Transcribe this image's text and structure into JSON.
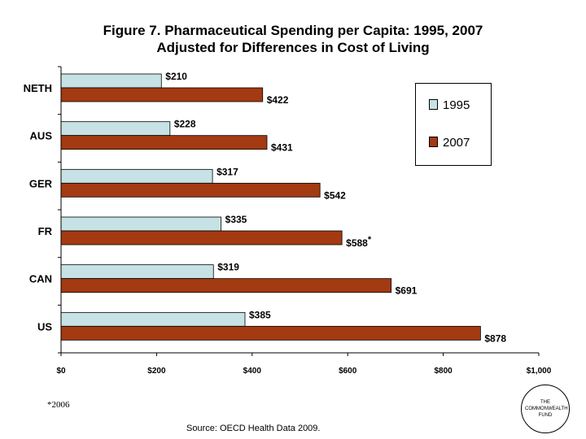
{
  "chart_data": {
    "type": "bar",
    "orientation": "horizontal",
    "title": "Figure 7. Pharmaceutical Spending per Capita: 1995, 2007",
    "subtitle": "Adjusted for Differences in Cost of Living",
    "categories": [
      "NETH",
      "AUS",
      "GER",
      "FR",
      "CAN",
      "US"
    ],
    "series": [
      {
        "name": "1995",
        "color": "#c6e2e4",
        "values": [
          210,
          228,
          317,
          335,
          319,
          385
        ],
        "labels": [
          "$210",
          "$228",
          "$317",
          "$335",
          "$319",
          "$385"
        ]
      },
      {
        "name": "2007",
        "color": "#a33a12",
        "values": [
          422,
          431,
          542,
          588,
          691,
          878
        ],
        "labels": [
          "$422",
          "$431",
          "$542",
          "$588",
          "$691",
          "$878"
        ]
      }
    ],
    "annotations": [
      {
        "series": "2007",
        "category": "FR",
        "mark": "*"
      }
    ],
    "xlim": [
      0,
      1000
    ],
    "x_ticks": [
      0,
      200,
      400,
      600,
      800,
      1000
    ],
    "x_tick_labels": [
      "$0",
      "$200",
      "$400",
      "$600",
      "$800",
      "$1,000"
    ],
    "xlabel": "",
    "ylabel": "",
    "grid": false,
    "legend_position": "top-right"
  },
  "footnote": "*2006",
  "source": "Source: OECD Health Data 2009.",
  "logo_text": "THE\nCOMMONWEALTH\nFUND"
}
